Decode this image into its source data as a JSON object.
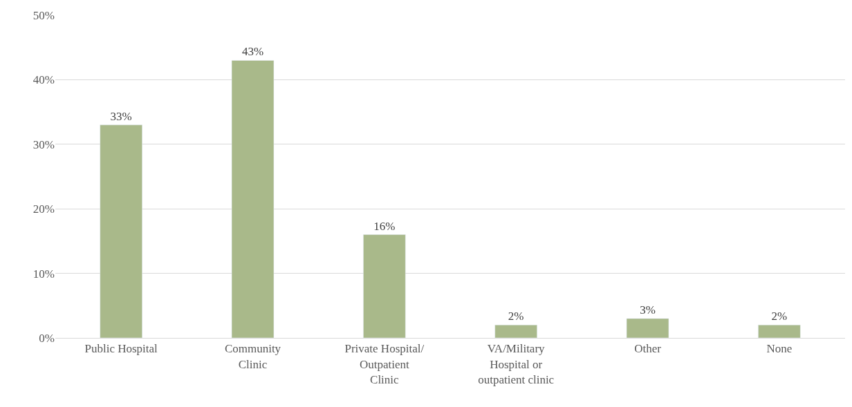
{
  "chart_data": {
    "type": "bar",
    "categories": [
      "Public Hospital",
      "Community\nClinic",
      "Private Hospital/\nOutpatient\nClinic",
      "VA/Military\nHospital or\noutpatient clinic",
      "Other",
      "None"
    ],
    "values": [
      33,
      43,
      16,
      2,
      3,
      2
    ],
    "value_labels": [
      "33%",
      "43%",
      "16%",
      "2%",
      "3%",
      "2%"
    ],
    "color": "#a9b98a",
    "ylim": [
      0,
      50
    ],
    "yticks": [
      {
        "value": 0,
        "label": "0%"
      },
      {
        "value": 10,
        "label": "10%"
      },
      {
        "value": 20,
        "label": "20%"
      },
      {
        "value": 30,
        "label": "30%"
      },
      {
        "value": 40,
        "label": "40%"
      },
      {
        "value": 50,
        "label": "50%"
      }
    ],
    "grid": "y",
    "legend": false
  }
}
